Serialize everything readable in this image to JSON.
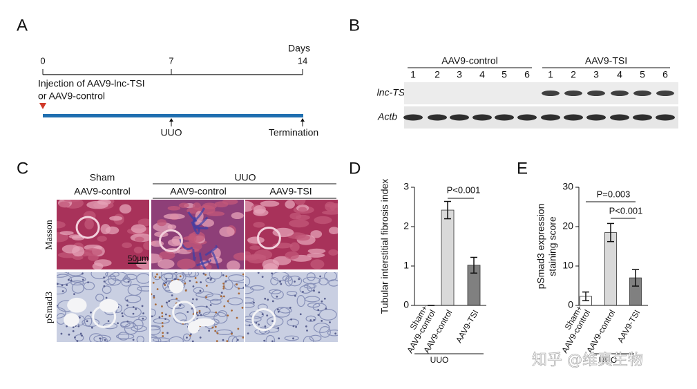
{
  "panel_a": {
    "label": "A",
    "days_label": "Days",
    "timeline_ticks": [
      "0",
      "7",
      "14"
    ],
    "injection_line1": "Injection of AAV9-lnc-TSI",
    "injection_line2": "or AAV9-control",
    "events": [
      "UUO",
      "Termination"
    ]
  },
  "panel_b": {
    "label": "B",
    "groups": [
      {
        "name": "AAV9-control",
        "lanes": [
          "1",
          "2",
          "3",
          "4",
          "5",
          "6"
        ]
      },
      {
        "name": "AAV9-TSI",
        "lanes": [
          "1",
          "2",
          "3",
          "4",
          "5",
          "6"
        ]
      }
    ],
    "rows": [
      "lnc-TSI",
      "Actb"
    ]
  },
  "panel_c": {
    "label": "C",
    "sham_header": [
      "Sham",
      "AAV9-control"
    ],
    "uuo_header": "UUO",
    "uuo_columns": [
      "AAV9-control",
      "AAV9-TSI"
    ],
    "rows": [
      "Masson",
      "pSmad3"
    ],
    "scale_bar": "50μm"
  },
  "chart_data": [
    {
      "type": "bar",
      "label": "D",
      "ylabel": "Tubular interstitial fibrosis index",
      "categories": [
        "Sham+ AAV9-control",
        "AAV9-control",
        "AAV9-TSI"
      ],
      "values": [
        0,
        2.42,
        1.02
      ],
      "errors": [
        0,
        0.22,
        0.2
      ],
      "colors": [
        "#ffffff",
        "#d9d9d9",
        "#808080"
      ],
      "ylim": [
        0,
        3
      ],
      "yticks": [
        0,
        1,
        2,
        3
      ],
      "annotations": [
        "P<0.001"
      ],
      "group_label": "UUO"
    },
    {
      "type": "bar",
      "label": "E",
      "ylabel": [
        "pSmad3 expression",
        "staining score"
      ],
      "categories": [
        "Sham+ AAV9-control",
        "AAV9-control",
        "AAV9-TSI"
      ],
      "values": [
        2.3,
        18.5,
        7.0
      ],
      "errors": [
        1.1,
        2.3,
        2.1
      ],
      "colors": [
        "#ffffff",
        "#d9d9d9",
        "#808080"
      ],
      "ylim": [
        0,
        30
      ],
      "yticks": [
        0,
        10,
        20,
        30
      ],
      "annotations": [
        "P=0.003",
        "P<0.001"
      ],
      "group_label": "UUO"
    }
  ],
  "watermark": "知乎 @维真生物"
}
